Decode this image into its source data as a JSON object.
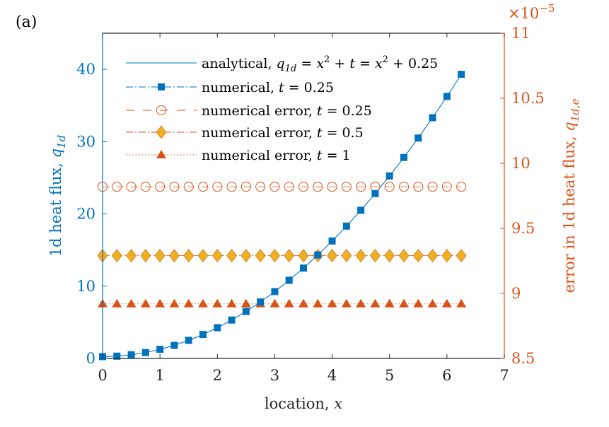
{
  "panel_label": "(a)",
  "colors": {
    "left_axis": "#0072BD",
    "right_axis": "#D95319",
    "error_t025": "#D95319",
    "error_t05_fill": "#EDB120",
    "error_t1_fill": "#D95319",
    "x_axis": "#262626"
  },
  "chart_data": {
    "type": "line",
    "panel": "(a)",
    "xlabel": "location, x",
    "ylabel_left": "1d heat flux, q_1d",
    "ylabel_right": "error in 1d heat flux, q_1d,e",
    "xlim": [
      0,
      7
    ],
    "ylim_left": [
      0,
      45
    ],
    "ylim_right": [
      8.5,
      11
    ],
    "right_axis_multiplier": "×10^-5",
    "x_ticks": [
      0,
      1,
      2,
      3,
      4,
      5,
      6,
      7
    ],
    "y_ticks_left": [
      0,
      10,
      20,
      30,
      40
    ],
    "y_ticks_right": [
      8.5,
      9,
      9.5,
      10,
      10.5,
      11
    ],
    "x": [
      0,
      0.25,
      0.5,
      0.75,
      1,
      1.25,
      1.5,
      1.75,
      2,
      2.25,
      2.5,
      2.75,
      3,
      3.25,
      3.5,
      3.75,
      4,
      4.25,
      4.5,
      4.75,
      5,
      5.25,
      5.5,
      5.75,
      6,
      6.25
    ],
    "series": [
      {
        "name": "analytical, q_1d = x^2 + t = x^2 + 0.25",
        "axis": "left",
        "style": "solid",
        "marker": "none",
        "values": [
          0.25,
          0.3125,
          0.5,
          0.8125,
          1.25,
          1.8125,
          2.5,
          3.3125,
          4.25,
          5.3125,
          6.5,
          7.8125,
          9.25,
          10.8125,
          12.5,
          14.3125,
          16.25,
          18.3125,
          20.5,
          22.8125,
          25.25,
          27.8125,
          30.5,
          33.3125,
          36.25,
          39.3125
        ]
      },
      {
        "name": "numerical, t = 0.25",
        "axis": "left",
        "style": "dashdot",
        "marker": "square",
        "values": [
          0.25,
          0.3125,
          0.5,
          0.8125,
          1.25,
          1.8125,
          2.5,
          3.3125,
          4.25,
          5.3125,
          6.5,
          7.8125,
          9.25,
          10.8125,
          12.5,
          14.3125,
          16.25,
          18.3125,
          20.5,
          22.8125,
          25.25,
          27.8125,
          30.5,
          33.3125,
          36.25,
          39.3125
        ]
      },
      {
        "name": "numerical error, t = 0.25",
        "axis": "right",
        "style": "dashed",
        "marker": "circle-open",
        "values": [
          9.82,
          9.82,
          9.82,
          9.82,
          9.82,
          9.82,
          9.82,
          9.82,
          9.82,
          9.82,
          9.82,
          9.82,
          9.82,
          9.82,
          9.82,
          9.82,
          9.82,
          9.82,
          9.82,
          9.82,
          9.82,
          9.82,
          9.82,
          9.82,
          9.82,
          9.82
        ]
      },
      {
        "name": "numerical error, t = 0.5",
        "axis": "right",
        "style": "dashdot",
        "marker": "diamond",
        "values": [
          9.29,
          9.29,
          9.29,
          9.29,
          9.29,
          9.29,
          9.29,
          9.29,
          9.29,
          9.29,
          9.29,
          9.29,
          9.29,
          9.29,
          9.29,
          9.29,
          9.29,
          9.29,
          9.29,
          9.29,
          9.29,
          9.29,
          9.29,
          9.29,
          9.29,
          9.29
        ]
      },
      {
        "name": "numerical error, t = 1",
        "axis": "right",
        "style": "dotted",
        "marker": "triangle",
        "values": [
          8.92,
          8.92,
          8.92,
          8.92,
          8.92,
          8.92,
          8.92,
          8.92,
          8.92,
          8.92,
          8.92,
          8.92,
          8.92,
          8.92,
          8.92,
          8.92,
          8.92,
          8.92,
          8.92,
          8.92,
          8.92,
          8.92,
          8.92,
          8.92,
          8.92,
          8.92
        ]
      }
    ],
    "legend": {
      "position": "top-left",
      "entries": [
        "analytical, q_1d = x^2 + t = x^2 + 0.25",
        "numerical, t = 0.25",
        "numerical error, t = 0.25",
        "numerical error, t = 0.5",
        "numerical error, t = 1"
      ]
    }
  }
}
